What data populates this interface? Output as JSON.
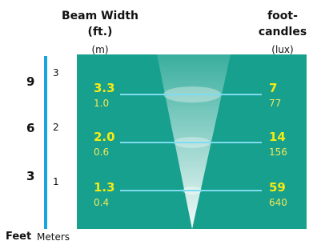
{
  "header": {
    "beam_width": "Beam Width (ft.)",
    "beam_width_unit": "(m)",
    "illuminance": "foot-candles",
    "illuminance_unit": "(lux)"
  },
  "axis": {
    "feet_label": "Feet",
    "meters_label": "Meters",
    "marks": [
      {
        "feet": "9",
        "meters": "3"
      },
      {
        "feet": "6",
        "meters": "2"
      },
      {
        "feet": "3",
        "meters": "1"
      }
    ]
  },
  "rows": [
    {
      "width_ft": "3.3",
      "width_m": "1.0",
      "footcandles": "7",
      "lux": "77"
    },
    {
      "width_ft": "2.0",
      "width_m": "0.6",
      "footcandles": "14",
      "lux": "156"
    },
    {
      "width_ft": "1.3",
      "width_m": "0.4",
      "footcandles": "59",
      "lux": "640"
    }
  ]
}
